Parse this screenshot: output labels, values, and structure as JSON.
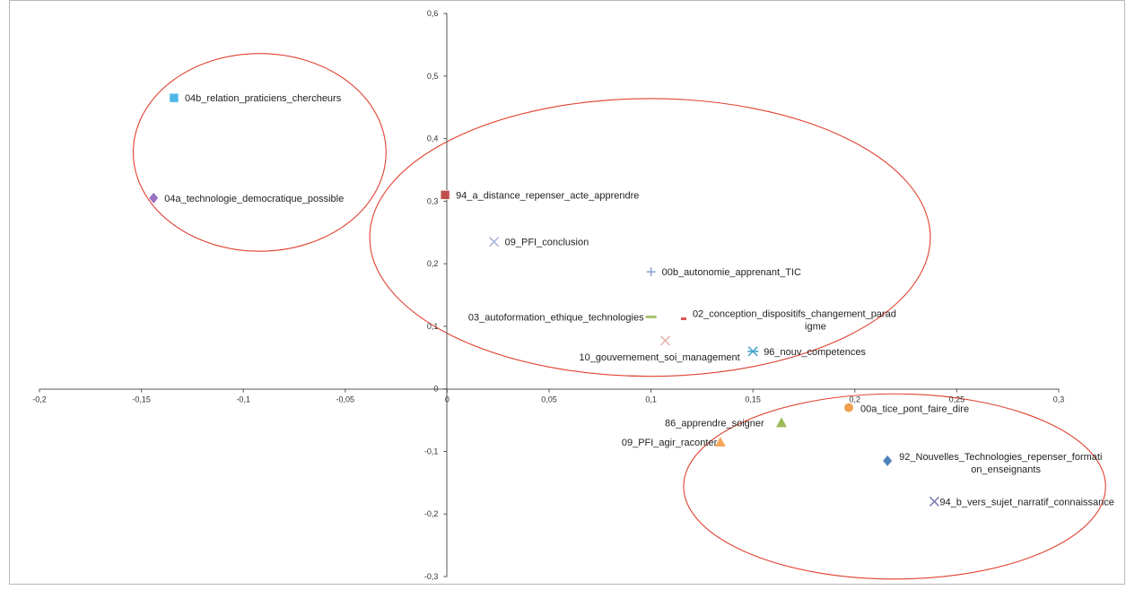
{
  "chart_data": {
    "type": "scatter",
    "title": "",
    "xlabel": "",
    "ylabel": "",
    "xlim": [
      -0.2,
      0.3
    ],
    "ylim": [
      -0.3,
      0.6
    ],
    "x_ticks": [
      "-0,2",
      "-0,15",
      "-0,1",
      "-0,05",
      "0",
      "0,05",
      "0,1",
      "0,15",
      "0,2",
      "0,25",
      "0,3"
    ],
    "y_ticks": [
      "-0,3",
      "-0,2",
      "-0,1",
      "0",
      "0,1",
      "0,2",
      "0,3",
      "0,4",
      "0,5",
      "0,6"
    ],
    "grid": false,
    "points": [
      {
        "label": "04b_relation_praticiens_chercheurs",
        "x": -0.134,
        "y": 0.465,
        "marker": "square",
        "color": "#4db8e8"
      },
      {
        "label": "04a_technologie_democratique_possible",
        "x": -0.144,
        "y": 0.305,
        "marker": "diamond",
        "color": "#9b72c0"
      },
      {
        "label": "94_a_distance_repenser_acte_apprendre",
        "x": -0.001,
        "y": 0.31,
        "marker": "square",
        "color": "#c0504d"
      },
      {
        "label": "09_PFI_conclusion",
        "x": 0.023,
        "y": 0.235,
        "marker": "x",
        "color": "#aab4dd"
      },
      {
        "label": "00b_autonomie_apprenant_TIC",
        "x": 0.1,
        "y": 0.187,
        "marker": "plus",
        "color": "#8fa6d8"
      },
      {
        "label": "03_autoformation_ethique_technologies",
        "x": 0.1,
        "y": 0.115,
        "marker": "dash",
        "color": "#a5c26b"
      },
      {
        "label": "02_conception_dispositifs_changement_paradigme",
        "label_lines": [
          "02_conception_dispositifs_changement_parad",
          "igme"
        ],
        "x": 0.116,
        "y": 0.112,
        "marker": "dash",
        "color": "#d9534f"
      },
      {
        "label": "10_gouvernement_soi_management",
        "x": 0.107,
        "y": 0.077,
        "marker": "x",
        "color": "#e8b4b0"
      },
      {
        "label": "96_nouv_competences",
        "x": 0.15,
        "y": 0.06,
        "marker": "star",
        "color": "#4aa6c8"
      },
      {
        "label": "00a_tice_pont_faire_dire",
        "x": 0.197,
        "y": -0.03,
        "marker": "circle",
        "color": "#f0a050"
      },
      {
        "label": "86_apprendre_soigner",
        "x": 0.164,
        "y": -0.054,
        "marker": "triangle",
        "color": "#9bbb59"
      },
      {
        "label": "09_PFI_agir_raconter",
        "x": 0.134,
        "y": -0.085,
        "marker": "triangle",
        "color": "#f6a85a"
      },
      {
        "label": "92_Nouvelles_Technologies_repenser_formation_enseignants",
        "label_lines": [
          "92_Nouvelles_Technologies_repenser_formati",
          "on_enseignants"
        ],
        "x": 0.216,
        "y": -0.115,
        "marker": "diamond",
        "color": "#4f81bd"
      },
      {
        "label": "94_b_vers_sujet_narratif_connaissance",
        "x": 0.239,
        "y": -0.18,
        "marker": "x",
        "color": "#7f7fb8"
      }
    ],
    "clusters": [
      {
        "cx": -0.092,
        "cy": 0.378,
        "rx": 0.062,
        "ry": 0.158,
        "color": "#e0402f"
      },
      {
        "cx": 0.0995,
        "cy": 0.242,
        "rx": 0.1375,
        "ry": 0.222,
        "color": "#e0402f"
      },
      {
        "cx": 0.2195,
        "cy": -0.156,
        "rx": 0.1035,
        "ry": 0.148,
        "color": "#e0402f"
      }
    ]
  }
}
